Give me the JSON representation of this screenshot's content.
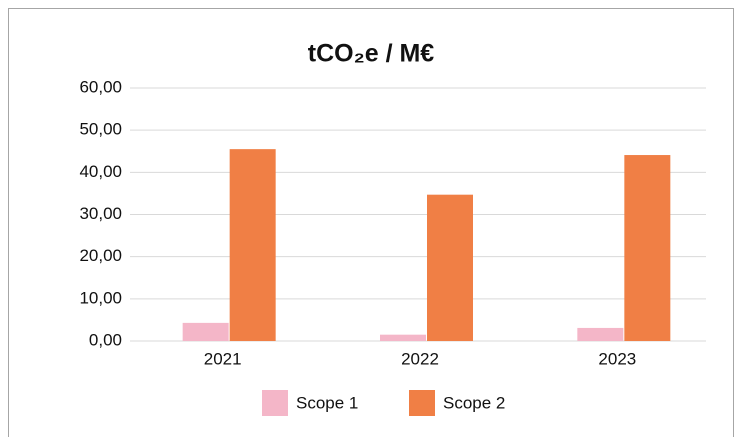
{
  "chart_data": {
    "type": "bar",
    "title": "tCO₂e / M€",
    "categories": [
      "2021",
      "2022",
      "2023"
    ],
    "series": [
      {
        "name": "Scope 1",
        "color": "#f4b6c8",
        "values": [
          4.3,
          1.5,
          3.1
        ]
      },
      {
        "name": "Scope 2",
        "color": "#f07f45",
        "values": [
          45.5,
          34.7,
          44.1
        ]
      }
    ],
    "ylim": [
      0,
      60
    ],
    "yticks": [
      {
        "value": 0,
        "label": "0,00"
      },
      {
        "value": 10,
        "label": "10,00"
      },
      {
        "value": 20,
        "label": "20,00"
      },
      {
        "value": 30,
        "label": "30,00"
      },
      {
        "value": 40,
        "label": "40,00"
      },
      {
        "value": 50,
        "label": "50,00"
      },
      {
        "value": 60,
        "label": "60,00"
      }
    ],
    "grid": true,
    "legend": "bottom"
  }
}
